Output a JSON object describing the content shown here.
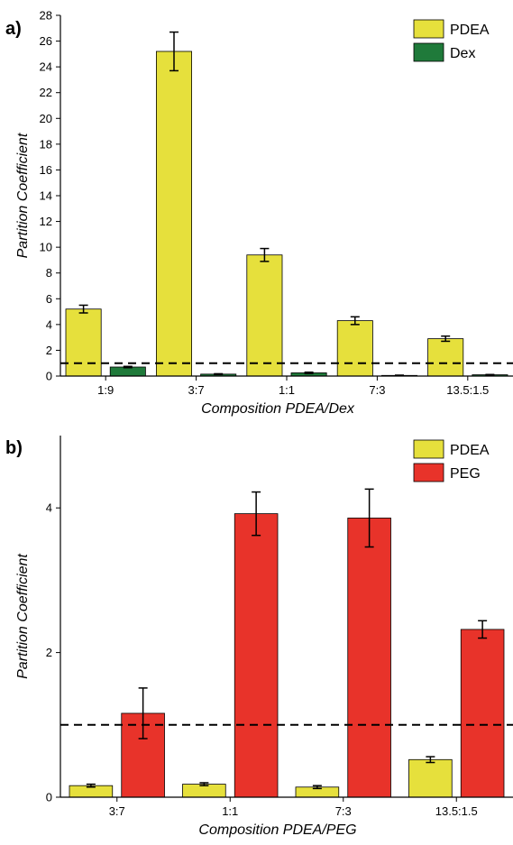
{
  "chart_data": [
    {
      "panel_label": "a)",
      "type": "bar",
      "categories": [
        "1:9",
        "3:7",
        "1:1",
        "7:3",
        "13.5:1.5"
      ],
      "series": [
        {
          "name": "PDEA",
          "color": "#e6e03c",
          "values": [
            5.2,
            25.2,
            9.4,
            4.3,
            2.9
          ],
          "errors": [
            0.3,
            1.5,
            0.5,
            0.3,
            0.2
          ]
        },
        {
          "name": "Dex",
          "color": "#1f7a3a",
          "values": [
            0.7,
            0.15,
            0.25,
            0.05,
            0.1
          ],
          "errors": [
            0.05,
            0.03,
            0.05,
            0.02,
            0.02
          ]
        }
      ],
      "xlabel": "Composition PDEA/Dex",
      "ylabel": "Partition Coefficient",
      "ylim": [
        0,
        28
      ],
      "yticks": [
        0,
        2,
        4,
        6,
        8,
        10,
        12,
        14,
        16,
        18,
        20,
        22,
        24,
        26,
        28
      ],
      "reference_line": 1,
      "legend": "top-right"
    },
    {
      "panel_label": "b)",
      "type": "bar",
      "categories": [
        "3:7",
        "1:1",
        "7:3",
        "13.5:1.5"
      ],
      "series": [
        {
          "name": "PDEA",
          "color": "#e6e03c",
          "values": [
            0.16,
            0.18,
            0.14,
            0.52
          ],
          "errors": [
            0.02,
            0.02,
            0.02,
            0.04
          ]
        },
        {
          "name": "PEG",
          "color": "#e8332a",
          "values": [
            1.16,
            3.92,
            3.86,
            2.32
          ],
          "errors": [
            0.35,
            0.3,
            0.4,
            0.12
          ]
        }
      ],
      "xlabel": "Composition PDEA/PEG",
      "ylabel": "Partition Coefficient",
      "ylim": [
        0,
        5
      ],
      "yticks": [
        0,
        2,
        4
      ],
      "reference_line": 1,
      "legend": "top-right"
    }
  ]
}
